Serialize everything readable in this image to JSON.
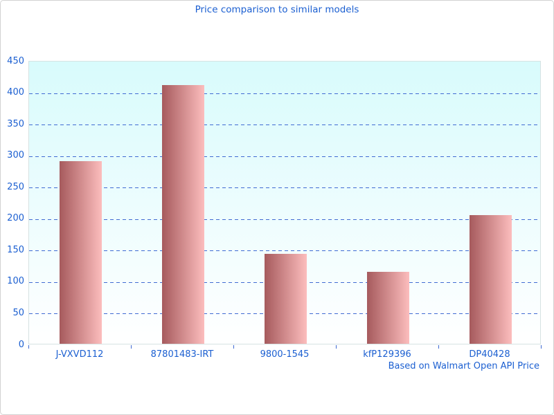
{
  "window": {
    "background_color": "#ffffff",
    "border_color": "#d2d2d2"
  },
  "chart_data": {
    "type": "bar",
    "title": "Price comparison to similar models",
    "categories": [
      "J-VXVD112",
      "87801483-IRT",
      "9800-1545",
      "kfP129396",
      "DP40428"
    ],
    "values": [
      290,
      410,
      143,
      114,
      204
    ],
    "xlabel": "",
    "ylabel": "",
    "ylim": [
      0,
      450
    ],
    "ytick_step": 50,
    "yticks": [
      0,
      50,
      100,
      150,
      200,
      250,
      300,
      350,
      400,
      450
    ],
    "grid": "horizontal-dashed",
    "legend_position": "none",
    "footer": "Based on Walmart Open API Price",
    "colors": {
      "text": "#1b5fd1",
      "gridline": "#3f6ad2",
      "tick": "#3f6ad2",
      "bar_gradient_left": "#a65a5d",
      "bar_gradient_right": "#fcbdbd",
      "plot_background_top": "#d8fbfc",
      "plot_background_bottom": "#ffffff",
      "plot_border": "#d6e2e2"
    }
  }
}
